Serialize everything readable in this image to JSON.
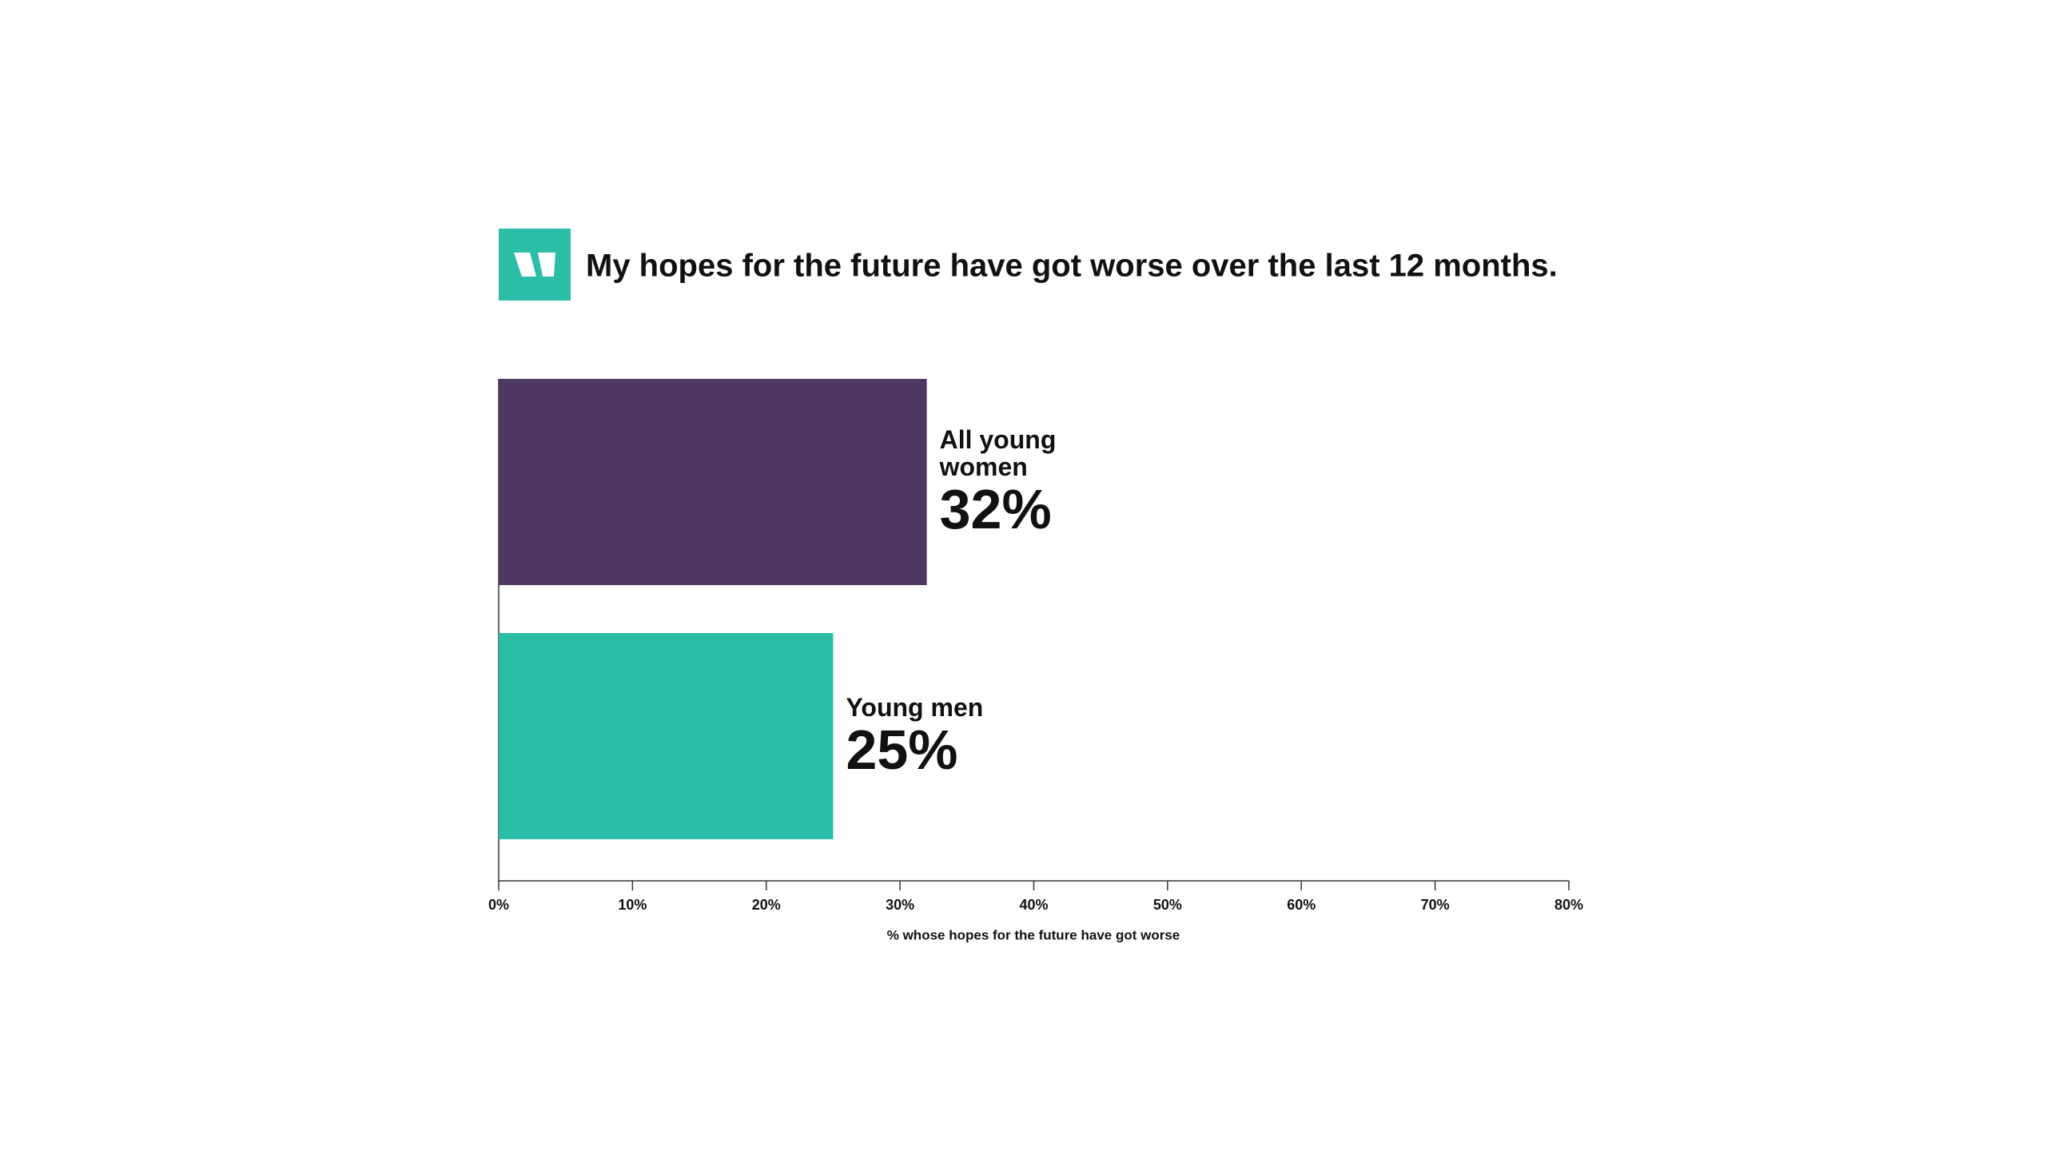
{
  "chart_data": {
    "type": "bar",
    "orientation": "horizontal",
    "title": "My hopes for the future have got worse over the last 12 months.",
    "categories": [
      "All young women",
      "Young men"
    ],
    "values": [
      32,
      25
    ],
    "value_labels": [
      "32%",
      "25%"
    ],
    "colors": [
      "#4e3862",
      "#2bbda7"
    ],
    "xlim": [
      0,
      80
    ],
    "xticks": [
      {
        "value": 0,
        "label": "0%"
      },
      {
        "value": 10,
        "label": "10%"
      },
      {
        "value": 20,
        "label": "20%"
      },
      {
        "value": 30,
        "label": "30%"
      },
      {
        "value": 40,
        "label": "40%"
      },
      {
        "value": 50,
        "label": "50%"
      },
      {
        "value": 60,
        "label": "60%"
      },
      {
        "value": 70,
        "label": "70%"
      },
      {
        "value": 80,
        "label": "80%"
      }
    ],
    "xlabel": "% whose hopes for the future have got worse"
  }
}
